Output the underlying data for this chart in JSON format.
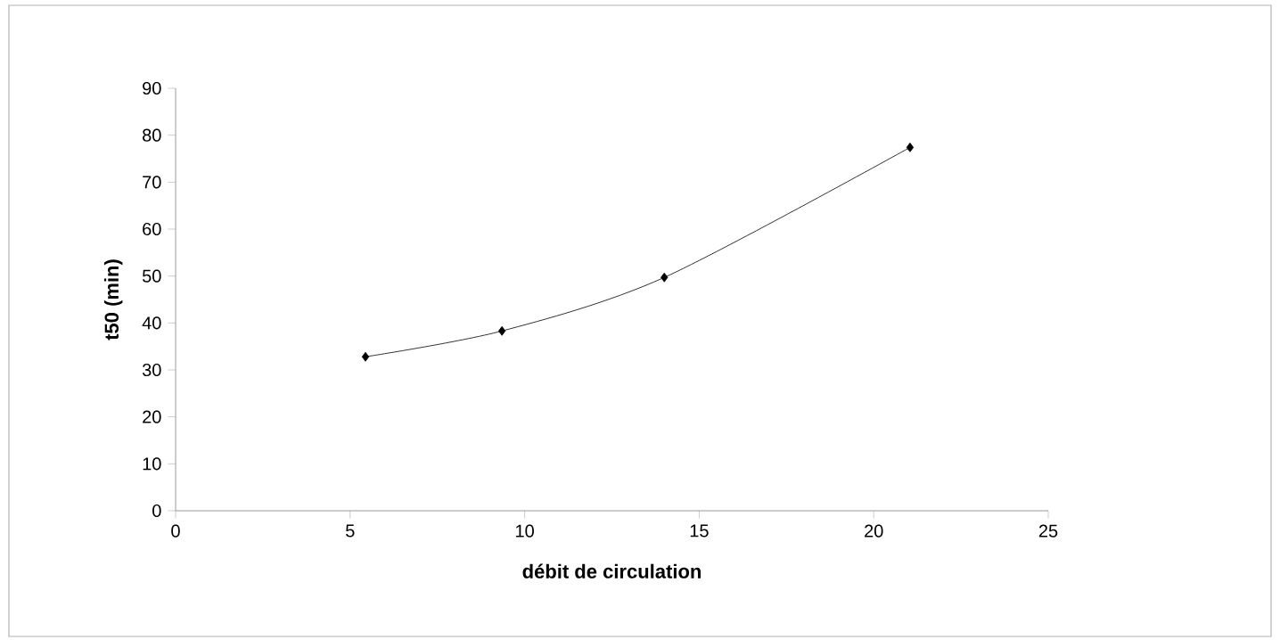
{
  "chart_data": {
    "type": "line",
    "xlabel": "débit de circulation",
    "ylabel": "t50 (min)",
    "x": [
      5.44,
      9.35,
      14.0,
      21.04
    ],
    "series": [
      {
        "color": "#000000",
        "values": [
          32.8,
          38.3,
          49.7,
          77.4
        ]
      }
    ],
    "xlim": [
      0,
      25
    ],
    "xticks": [
      0,
      5,
      10,
      15,
      20,
      25
    ],
    "ylim": [
      0,
      90
    ],
    "yticks": [
      0,
      10,
      20,
      30,
      40,
      50,
      60,
      70,
      80,
      90
    ],
    "grid": false,
    "marker": "diamond",
    "line_style": "solid"
  }
}
